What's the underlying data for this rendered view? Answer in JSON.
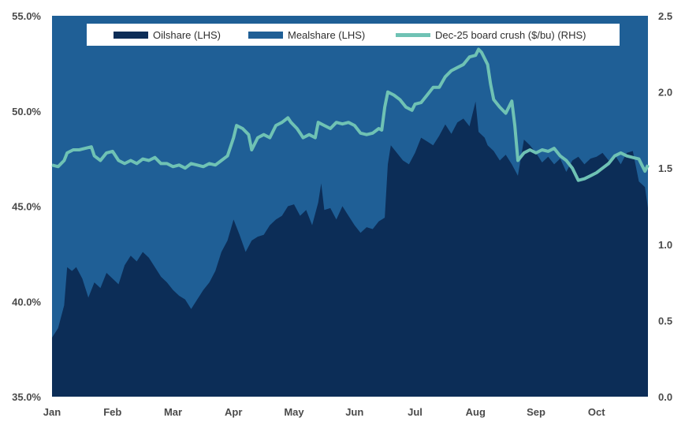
{
  "colors": {
    "oilshare": "#0c2d57",
    "mealshare": "#1f5f96",
    "crush": "#6fc2b4",
    "tick_text": "#4a4a4a",
    "legend_bg": "#ffffff"
  },
  "chart_data": {
    "type": "area",
    "title": "",
    "legend_position": "top-center",
    "legend": [
      {
        "name": "Oilshare (LHS)",
        "color": "#0c2d57",
        "kind": "area"
      },
      {
        "name": "Mealshare (LHS)",
        "color": "#1f5f96",
        "kind": "area"
      },
      {
        "name": "Dec-25 board crush ($/bu) (RHS)",
        "color": "#6fc2b4",
        "kind": "line"
      }
    ],
    "x_ticks": [
      "Jan",
      "Feb",
      "Mar",
      "Apr",
      "May",
      "Jun",
      "Jul",
      "Aug",
      "Sep",
      "Oct"
    ],
    "x_tick_positions": [
      0,
      1,
      2,
      3,
      4,
      5,
      6,
      7,
      8,
      9
    ],
    "x_range": [
      0,
      9.85
    ],
    "left_axis": {
      "ticks": [
        "35.0%",
        "40.0%",
        "45.0%",
        "50.0%",
        "55.0%"
      ],
      "range": [
        35,
        55
      ]
    },
    "right_axis": {
      "ticks": [
        "0.0",
        "0.5",
        "1.0",
        "1.5",
        "2.0",
        "2.5"
      ],
      "range": [
        0,
        2.5
      ]
    },
    "series": [
      {
        "name": "Oilshare (LHS)",
        "axis": "left",
        "type": "area",
        "points": [
          [
            0.0,
            38.1
          ],
          [
            0.1,
            38.6
          ],
          [
            0.2,
            39.8
          ],
          [
            0.25,
            41.8
          ],
          [
            0.33,
            41.6
          ],
          [
            0.4,
            41.8
          ],
          [
            0.5,
            41.2
          ],
          [
            0.6,
            40.2
          ],
          [
            0.7,
            41.0
          ],
          [
            0.8,
            40.7
          ],
          [
            0.9,
            41.5
          ],
          [
            1.0,
            41.2
          ],
          [
            1.1,
            40.9
          ],
          [
            1.2,
            41.9
          ],
          [
            1.3,
            42.4
          ],
          [
            1.4,
            42.1
          ],
          [
            1.5,
            42.6
          ],
          [
            1.6,
            42.3
          ],
          [
            1.7,
            41.8
          ],
          [
            1.8,
            41.3
          ],
          [
            1.9,
            41.0
          ],
          [
            2.0,
            40.6
          ],
          [
            2.1,
            40.3
          ],
          [
            2.2,
            40.1
          ],
          [
            2.3,
            39.6
          ],
          [
            2.4,
            40.1
          ],
          [
            2.5,
            40.6
          ],
          [
            2.6,
            41.0
          ],
          [
            2.7,
            41.6
          ],
          [
            2.8,
            42.6
          ],
          [
            2.9,
            43.2
          ],
          [
            3.0,
            44.3
          ],
          [
            3.1,
            43.5
          ],
          [
            3.2,
            42.6
          ],
          [
            3.3,
            43.2
          ],
          [
            3.4,
            43.4
          ],
          [
            3.5,
            43.5
          ],
          [
            3.6,
            44.0
          ],
          [
            3.7,
            44.3
          ],
          [
            3.8,
            44.5
          ],
          [
            3.9,
            45.0
          ],
          [
            4.0,
            45.1
          ],
          [
            4.1,
            44.5
          ],
          [
            4.2,
            44.8
          ],
          [
            4.3,
            44.0
          ],
          [
            4.4,
            45.2
          ],
          [
            4.45,
            46.2
          ],
          [
            4.5,
            44.8
          ],
          [
            4.6,
            44.9
          ],
          [
            4.7,
            44.3
          ],
          [
            4.8,
            45.0
          ],
          [
            4.9,
            44.5
          ],
          [
            5.0,
            44.0
          ],
          [
            5.1,
            43.6
          ],
          [
            5.2,
            43.9
          ],
          [
            5.3,
            43.8
          ],
          [
            5.4,
            44.2
          ],
          [
            5.5,
            44.4
          ],
          [
            5.55,
            47.2
          ],
          [
            5.6,
            48.2
          ],
          [
            5.7,
            47.8
          ],
          [
            5.8,
            47.4
          ],
          [
            5.9,
            47.2
          ],
          [
            6.0,
            47.8
          ],
          [
            6.1,
            48.6
          ],
          [
            6.2,
            48.4
          ],
          [
            6.3,
            48.2
          ],
          [
            6.4,
            48.7
          ],
          [
            6.5,
            49.3
          ],
          [
            6.6,
            48.8
          ],
          [
            6.7,
            49.4
          ],
          [
            6.8,
            49.6
          ],
          [
            6.9,
            49.2
          ],
          [
            7.0,
            50.5
          ],
          [
            7.05,
            48.9
          ],
          [
            7.15,
            48.6
          ],
          [
            7.2,
            48.2
          ],
          [
            7.3,
            47.9
          ],
          [
            7.4,
            47.4
          ],
          [
            7.5,
            47.7
          ],
          [
            7.6,
            47.2
          ],
          [
            7.7,
            46.6
          ],
          [
            7.8,
            48.5
          ],
          [
            7.9,
            48.2
          ],
          [
            8.0,
            47.8
          ],
          [
            8.1,
            47.3
          ],
          [
            8.2,
            47.6
          ],
          [
            8.3,
            47.2
          ],
          [
            8.4,
            47.5
          ],
          [
            8.5,
            46.8
          ],
          [
            8.6,
            47.4
          ],
          [
            8.7,
            47.6
          ],
          [
            8.8,
            47.2
          ],
          [
            8.9,
            47.5
          ],
          [
            9.0,
            47.6
          ],
          [
            9.1,
            47.8
          ],
          [
            9.2,
            47.4
          ],
          [
            9.3,
            47.7
          ],
          [
            9.4,
            47.2
          ],
          [
            9.5,
            47.8
          ],
          [
            9.6,
            47.9
          ],
          [
            9.7,
            46.3
          ],
          [
            9.8,
            46.0
          ],
          [
            9.85,
            44.9
          ]
        ]
      },
      {
        "name": "Mealshare (LHS)",
        "axis": "left",
        "type": "area",
        "note": "Mealshare = 100% - Oilshare; fills the remainder above the oilshare area",
        "range": [
          35,
          55
        ]
      },
      {
        "name": "Dec-25 board crush ($/bu) (RHS)",
        "axis": "right",
        "type": "line",
        "points": [
          [
            0.0,
            1.52
          ],
          [
            0.1,
            1.51
          ],
          [
            0.2,
            1.55
          ],
          [
            0.25,
            1.6
          ],
          [
            0.35,
            1.62
          ],
          [
            0.45,
            1.62
          ],
          [
            0.55,
            1.63
          ],
          [
            0.65,
            1.64
          ],
          [
            0.7,
            1.58
          ],
          [
            0.8,
            1.55
          ],
          [
            0.9,
            1.6
          ],
          [
            1.0,
            1.61
          ],
          [
            1.1,
            1.55
          ],
          [
            1.2,
            1.53
          ],
          [
            1.3,
            1.55
          ],
          [
            1.4,
            1.53
          ],
          [
            1.5,
            1.56
          ],
          [
            1.6,
            1.55
          ],
          [
            1.7,
            1.57
          ],
          [
            1.8,
            1.53
          ],
          [
            1.9,
            1.53
          ],
          [
            2.0,
            1.51
          ],
          [
            2.1,
            1.52
          ],
          [
            2.2,
            1.5
          ],
          [
            2.3,
            1.53
          ],
          [
            2.4,
            1.52
          ],
          [
            2.5,
            1.51
          ],
          [
            2.6,
            1.53
          ],
          [
            2.7,
            1.52
          ],
          [
            2.8,
            1.55
          ],
          [
            2.9,
            1.58
          ],
          [
            3.0,
            1.7
          ],
          [
            3.05,
            1.78
          ],
          [
            3.15,
            1.76
          ],
          [
            3.25,
            1.72
          ],
          [
            3.3,
            1.62
          ],
          [
            3.4,
            1.7
          ],
          [
            3.5,
            1.72
          ],
          [
            3.6,
            1.7
          ],
          [
            3.7,
            1.78
          ],
          [
            3.8,
            1.8
          ],
          [
            3.9,
            1.83
          ],
          [
            3.95,
            1.8
          ],
          [
            4.05,
            1.76
          ],
          [
            4.1,
            1.73
          ],
          [
            4.15,
            1.7
          ],
          [
            4.25,
            1.72
          ],
          [
            4.35,
            1.7
          ],
          [
            4.4,
            1.8
          ],
          [
            4.5,
            1.78
          ],
          [
            4.6,
            1.76
          ],
          [
            4.7,
            1.8
          ],
          [
            4.8,
            1.79
          ],
          [
            4.9,
            1.8
          ],
          [
            5.0,
            1.78
          ],
          [
            5.1,
            1.73
          ],
          [
            5.2,
            1.72
          ],
          [
            5.3,
            1.73
          ],
          [
            5.4,
            1.76
          ],
          [
            5.45,
            1.75
          ],
          [
            5.5,
            1.9
          ],
          [
            5.55,
            2.0
          ],
          [
            5.65,
            1.98
          ],
          [
            5.75,
            1.95
          ],
          [
            5.85,
            1.9
          ],
          [
            5.95,
            1.88
          ],
          [
            6.0,
            1.92
          ],
          [
            6.1,
            1.93
          ],
          [
            6.2,
            1.98
          ],
          [
            6.3,
            2.03
          ],
          [
            6.4,
            2.03
          ],
          [
            6.5,
            2.1
          ],
          [
            6.6,
            2.14
          ],
          [
            6.7,
            2.16
          ],
          [
            6.8,
            2.18
          ],
          [
            6.9,
            2.23
          ],
          [
            7.0,
            2.24
          ],
          [
            7.05,
            2.28
          ],
          [
            7.1,
            2.26
          ],
          [
            7.2,
            2.18
          ],
          [
            7.25,
            2.05
          ],
          [
            7.3,
            1.95
          ],
          [
            7.4,
            1.9
          ],
          [
            7.5,
            1.86
          ],
          [
            7.55,
            1.9
          ],
          [
            7.6,
            1.94
          ],
          [
            7.65,
            1.78
          ],
          [
            7.7,
            1.55
          ],
          [
            7.8,
            1.6
          ],
          [
            7.9,
            1.62
          ],
          [
            8.0,
            1.6
          ],
          [
            8.1,
            1.62
          ],
          [
            8.2,
            1.61
          ],
          [
            8.3,
            1.63
          ],
          [
            8.4,
            1.58
          ],
          [
            8.5,
            1.55
          ],
          [
            8.6,
            1.5
          ],
          [
            8.7,
            1.42
          ],
          [
            8.8,
            1.43
          ],
          [
            8.9,
            1.45
          ],
          [
            9.0,
            1.47
          ],
          [
            9.1,
            1.5
          ],
          [
            9.2,
            1.53
          ],
          [
            9.3,
            1.58
          ],
          [
            9.4,
            1.6
          ],
          [
            9.5,
            1.58
          ],
          [
            9.6,
            1.57
          ],
          [
            9.7,
            1.56
          ],
          [
            9.8,
            1.48
          ],
          [
            9.85,
            1.52
          ]
        ]
      }
    ]
  }
}
